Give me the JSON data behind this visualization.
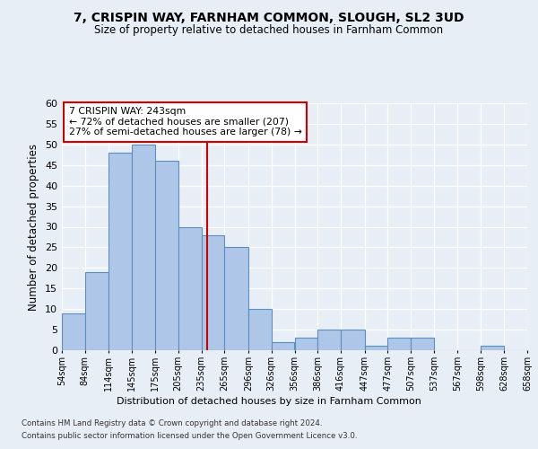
{
  "title1": "7, CRISPIN WAY, FARNHAM COMMON, SLOUGH, SL2 3UD",
  "title2": "Size of property relative to detached houses in Farnham Common",
  "xlabel": "Distribution of detached houses by size in Farnham Common",
  "ylabel": "Number of detached properties",
  "bins": [
    "54sqm",
    "84sqm",
    "114sqm",
    "145sqm",
    "175sqm",
    "205sqm",
    "235sqm",
    "265sqm",
    "296sqm",
    "326sqm",
    "356sqm",
    "386sqm",
    "416sqm",
    "447sqm",
    "477sqm",
    "507sqm",
    "537sqm",
    "567sqm",
    "598sqm",
    "628sqm",
    "658sqm"
  ],
  "bar_heights": [
    9,
    19,
    48,
    50,
    46,
    30,
    28,
    25,
    10,
    2,
    3,
    5,
    5,
    1,
    3,
    3,
    0,
    0,
    1,
    0
  ],
  "bar_color": "#aec6e8",
  "bar_edge_color": "#5a8fc0",
  "vline_x": 243,
  "vline_color": "#cc0000",
  "annotation_line1": "7 CRISPIN WAY: 243sqm",
  "annotation_line2": "← 72% of detached houses are smaller (207)",
  "annotation_line3": "27% of semi-detached houses are larger (78) →",
  "annotation_box_color": "#ffffff",
  "annotation_box_edge": "#cc0000",
  "ylim": [
    0,
    60
  ],
  "yticks": [
    0,
    5,
    10,
    15,
    20,
    25,
    30,
    35,
    40,
    45,
    50,
    55,
    60
  ],
  "footer1": "Contains HM Land Registry data © Crown copyright and database right 2024.",
  "footer2": "Contains public sector information licensed under the Open Government Licence v3.0.",
  "bg_color": "#e8eef5",
  "plot_bg_color": "#e8eef5"
}
